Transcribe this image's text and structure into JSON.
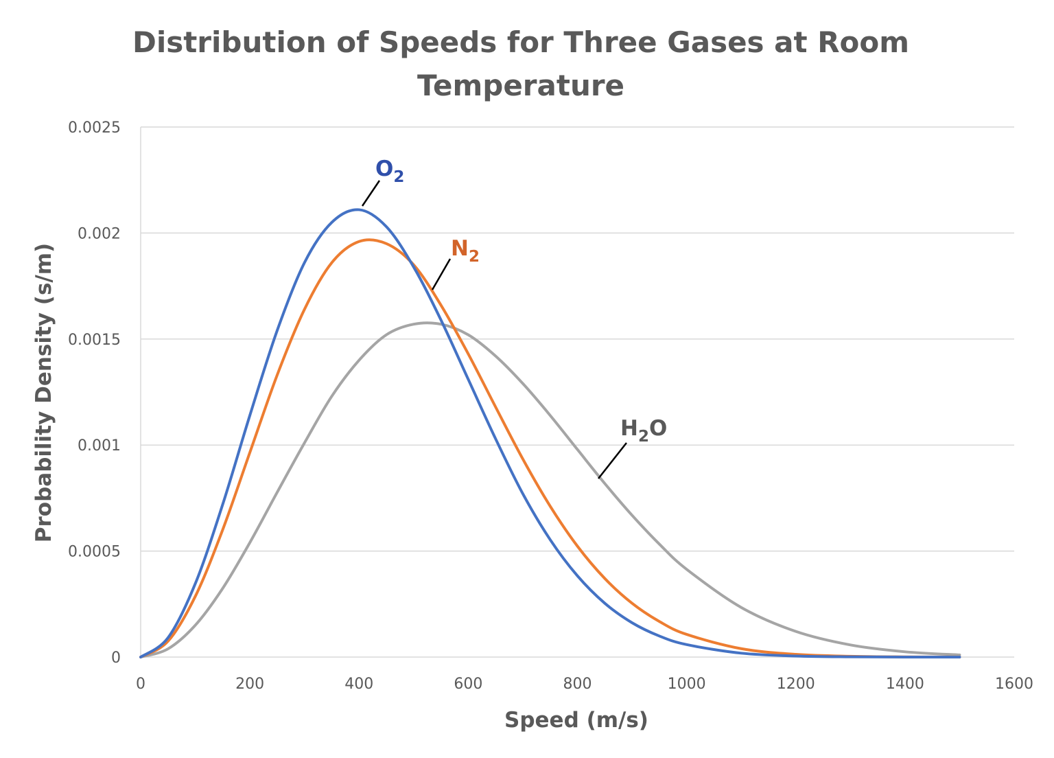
{
  "chart_data": {
    "type": "line",
    "title": [
      "Distribution of Speeds for Three Gases at Room",
      "Temperature"
    ],
    "xlabel": "Speed (m/s)",
    "ylabel": "Probability Density (s/m)",
    "xlim": [
      0,
      1600
    ],
    "ylim": [
      0,
      0.0025
    ],
    "xticks": [
      "0",
      "200",
      "400",
      "600",
      "800",
      "1000",
      "1200",
      "1400",
      "1600"
    ],
    "yticks": [
      "0",
      "0.0005",
      "0.001",
      "0.0015",
      "0.002",
      "0.0025"
    ],
    "grid": "horizontal",
    "legend": "none (inline labels)",
    "x": [
      0,
      50,
      100,
      150,
      200,
      250,
      300,
      350,
      400,
      450,
      500,
      550,
      600,
      650,
      700,
      750,
      800,
      850,
      900,
      950,
      1000,
      1100,
      1200,
      1300,
      1400,
      1500
    ],
    "series": [
      {
        "name": "O2",
        "label": {
          "text": "O",
          "sub": "2"
        },
        "color": "#4472C4",
        "label_color": "#2F4FAA",
        "values": [
          0,
          9.08e-05,
          0.000346,
          0.000718,
          0.00114,
          0.00154,
          0.00186,
          0.00205,
          0.00211,
          0.00203,
          0.00184,
          0.00159,
          0.00131,
          0.00103,
          0.00077,
          0.000554,
          0.000383,
          0.000254,
          0.000162,
          9.94e-05,
          5.88e-05,
          1.84e-05,
          5e-06,
          1.2e-06,
          2e-07,
          0
        ]
      },
      {
        "name": "N2",
        "label": {
          "text": "N",
          "sub": "2"
        },
        "color": "#ED7D31",
        "label_color": "#D2642A",
        "values": [
          0,
          7.46e-05,
          0.000286,
          0.000599,
          0.000965,
          0.00133,
          0.00164,
          0.00186,
          0.00196,
          0.00195,
          0.00185,
          0.00166,
          0.00143,
          0.00118,
          0.000934,
          0.000712,
          0.000523,
          0.000371,
          0.000254,
          0.000168,
          0.000107,
          3.97e-05,
          1.29e-05,
          3.7e-06,
          9e-07,
          2e-07
        ]
      },
      {
        "name": "H2O",
        "label": {
          "text": "H",
          "sub": "2",
          "after": "O"
        },
        "color": "#A5A5A5",
        "label_color": "#595959",
        "values": [
          0,
          3.86e-05,
          0.00015,
          0.000323,
          0.00054,
          0.000777,
          0.00101,
          0.00123,
          0.0014,
          0.00152,
          0.00157,
          0.00157,
          0.00152,
          0.00142,
          0.00129,
          0.00114,
          0.000979,
          0.000819,
          0.000669,
          0.000533,
          0.000414,
          0.000234,
          0.000121,
          5.73e-05,
          2.49e-05,
          1e-05
        ]
      }
    ]
  }
}
